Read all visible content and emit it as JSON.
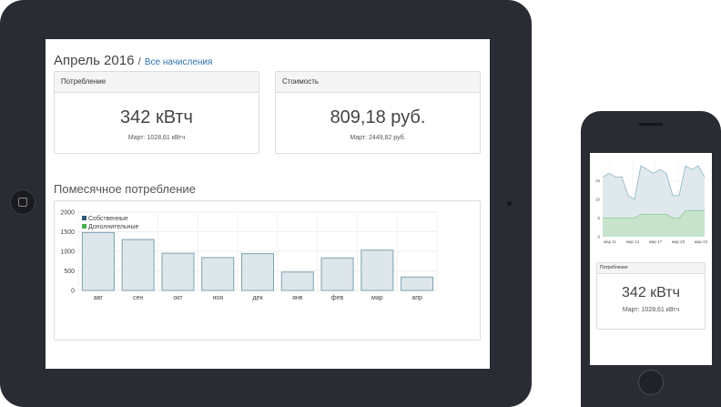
{
  "tablet": {
    "title": "Апрель 2016",
    "title_separator": "/",
    "all_charges_link": "Все начисления",
    "consumption_card": {
      "header": "Потребление",
      "value": "342 кВтч",
      "previous": "Март: 1028,61 кВтч"
    },
    "cost_card": {
      "header": "Стоимость",
      "value": "809,18 руб.",
      "previous": "Март: 2449,82 руб."
    },
    "monthly_title": "Помесячное потребление"
  },
  "phone": {
    "consumption_card": {
      "header": "Потребление",
      "value": "342 кВтч",
      "previous": "Март: 1028,61 кВтч"
    }
  },
  "chart_data": [
    {
      "type": "bar",
      "categories": [
        "авг",
        "сен",
        "окт",
        "ноя",
        "дек",
        "янв",
        "фев",
        "мар",
        "апр"
      ],
      "series": [
        {
          "name": "Собственные",
          "values": [
            1480,
            1300,
            950,
            840,
            940,
            470,
            830,
            1030,
            342
          ]
        },
        {
          "name": "Дополнительные",
          "values": [
            0,
            0,
            0,
            0,
            0,
            0,
            0,
            0,
            0
          ]
        }
      ],
      "y_ticks": [
        0,
        500,
        1000,
        1500,
        2000
      ],
      "ylim": [
        0,
        2000
      ],
      "legend_position": "top-left",
      "grid": true,
      "colors": {
        "bar_fill": "#dde6ea",
        "bar_stroke": "#7fa0b2",
        "legend_own": "#2f5a73",
        "legend_extra": "#4caf50"
      }
    },
    {
      "type": "area",
      "x_labels": [
        "мар 11",
        "мар 14",
        "мар 17",
        "мар 20",
        "мар 23"
      ],
      "y_ticks": [
        0,
        5,
        10,
        15
      ],
      "ylim": [
        0,
        20
      ],
      "series": [
        {
          "values": [
            16,
            17,
            16,
            16,
            11,
            10,
            19,
            18,
            17,
            18,
            17,
            11,
            11,
            19,
            18,
            19,
            16
          ]
        },
        {
          "values": [
            5,
            5,
            5,
            5,
            5,
            5,
            6,
            6,
            6,
            6,
            6,
            5,
            5,
            7,
            7,
            7,
            7
          ]
        }
      ],
      "grid": true,
      "colors": {
        "top_fill": "#dfe9ed",
        "top_stroke": "#8fb0c2",
        "bottom_fill": "#c7e3cc",
        "bottom_stroke": "#8fc79a"
      }
    }
  ]
}
